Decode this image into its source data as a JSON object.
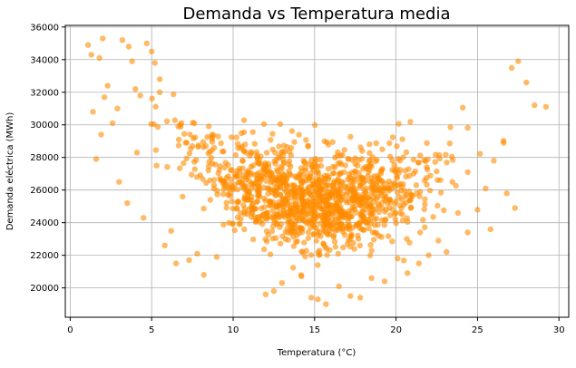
{
  "chart_data": {
    "type": "scatter",
    "title": "Demanda vs Temperatura media",
    "xlabel": "Temperatura (°C)",
    "ylabel": "Demanda eléctrica (MWh)",
    "xlim": [
      -0.3,
      30.6
    ],
    "ylim": [
      18200,
      36100
    ],
    "xticks": [
      0,
      5,
      10,
      15,
      20,
      25,
      30
    ],
    "yticks": [
      20000,
      22000,
      24000,
      26000,
      28000,
      30000,
      32000,
      34000,
      36000
    ],
    "grid": true,
    "marker_color": "#ff8c00",
    "marker_alpha": 0.6,
    "point_model": {
      "description_of_shape": "U-shaped cloud: demand high at cold (~1–5 °C) and hot (~25–29 °C) temperatures, minimum near 15 °C",
      "x_range": [
        1,
        29.3
      ],
      "point_count": 1300
    },
    "series": [
      {
        "x": [
          1.1,
          1.3,
          1.4,
          1.8,
          2.0,
          1.9,
          2.3,
          2.6,
          2.9,
          3.2,
          3.6,
          3.8,
          4.0,
          4.3,
          4.7,
          5.0,
          5.2,
          5.5,
          1.6,
          2.1,
          3.0,
          3.5,
          4.1,
          4.5,
          5.3,
          5.8,
          6.2,
          6.5,
          6.9,
          7.3,
          7.8,
          8.2,
          9.0,
          12.0,
          12.5,
          13.0,
          14.2,
          14.8,
          15.2,
          15.7,
          16.5,
          17.2,
          17.8,
          18.5,
          19.3,
          20.1,
          20.7,
          21.4,
          22.0,
          22.6,
          23.1,
          23.8,
          24.4,
          25.0,
          25.5,
          26.0,
          26.6,
          27.1,
          27.5,
          28.0,
          28.5,
          29.2,
          26.8,
          27.3,
          25.8
        ],
        "y": [
          34900,
          34300,
          30800,
          34100,
          35300,
          29400,
          32400,
          30100,
          31000,
          35200,
          34800,
          33900,
          32200,
          31800,
          35000,
          34500,
          33800,
          32800,
          27900,
          31700,
          26500,
          25200,
          28300,
          24300,
          27500,
          22600,
          23500,
          21500,
          25600,
          21700,
          22100,
          20800,
          21900,
          19600,
          19800,
          20300,
          20700,
          19400,
          19300,
          19000,
          20100,
          19500,
          19400,
          20600,
          20400,
          21800,
          20900,
          21500,
          22000,
          22900,
          22200,
          24600,
          23400,
          24800,
          26100,
          27800,
          28900,
          33500,
          33900,
          32600,
          31200,
          31100,
          25800,
          24900,
          23600
        ]
      }
    ]
  }
}
